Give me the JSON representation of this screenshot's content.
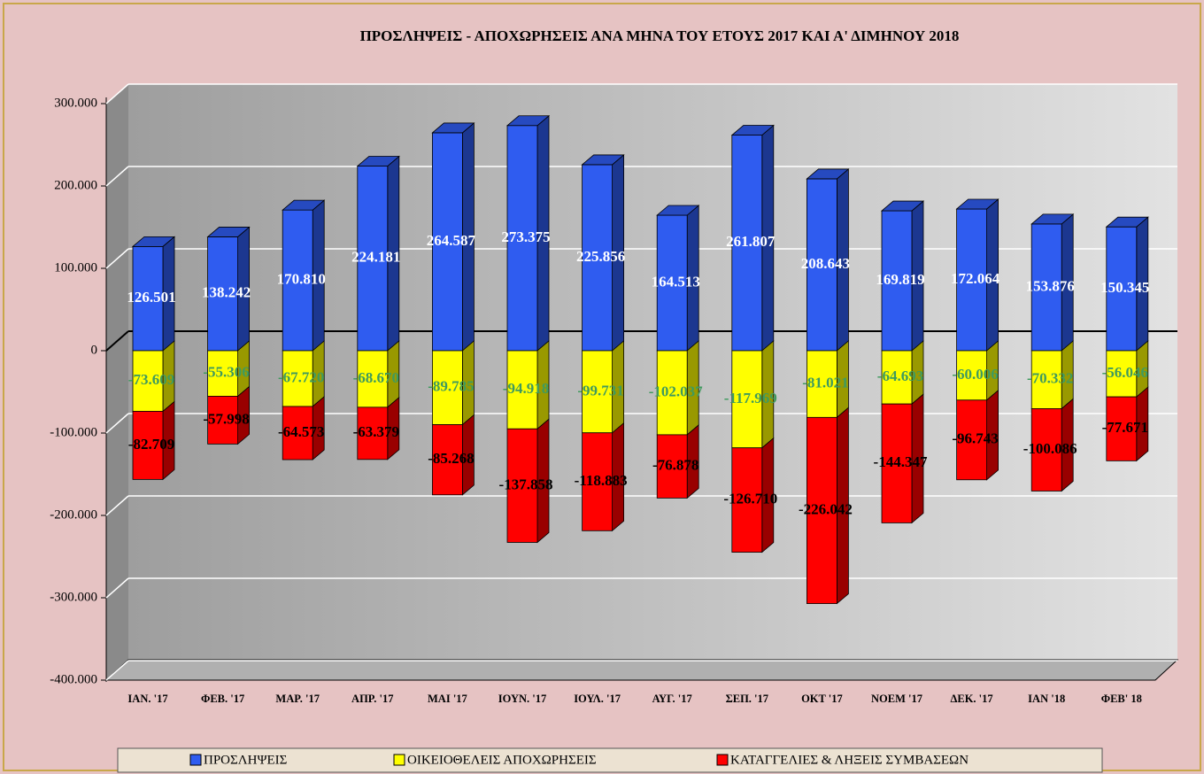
{
  "chart_data": {
    "type": "bar3d_stacked",
    "title": "ΠΡΟΣΛΗΨΕΙΣ - ΑΠΟΧΩΡΗΣΕΙΣ ΑΝΑ ΜΗΝΑ ΤΟΥ  ΕΤΟΥΣ 2017  ΚΑΙ Α' ΔΙΜΗΝΟΥ 2018",
    "categories": [
      "ΙΑΝ. '17",
      "ΦΕΒ. '17",
      "ΜΑΡ. '17",
      "ΑΠΡ. '17",
      "ΜΑΙ  '17",
      "ΙΟΥΝ. '17",
      "ΙΟΥΛ. '17",
      "ΑΥΓ. '17",
      "ΣΕΠ. '17",
      "ΟΚΤ '17",
      "ΝΟΕΜ '17",
      "ΔΕΚ. '17",
      "ΙΑΝ  '18",
      "ΦΕΒ' 18"
    ],
    "series": [
      {
        "name": "ΠΡΟΣΛΗΨΕΙΣ",
        "color": "#2f5cf0",
        "label_color": "#ffffff",
        "values": [
          126501,
          138242,
          170810,
          224181,
          264587,
          273375,
          225856,
          164513,
          261807,
          208643,
          169819,
          172064,
          153876,
          150345
        ],
        "value_labels": [
          "126.501",
          "138.242",
          "170.810",
          "224.181",
          "264.587",
          "273.375",
          "225.856",
          "164.513",
          "261.807",
          "208.643",
          "169.819",
          "172.064",
          "153.876",
          "150.345"
        ]
      },
      {
        "name": "ΟΙΚΕΙΟΘΕΛΕΙΣ ΑΠΟΧΩΡΗΣΕΙΣ",
        "color": "#ffff00",
        "label_color": "#3f9a5e",
        "values": [
          -73609,
          -55306,
          -67720,
          -68670,
          -89785,
          -94918,
          -99731,
          -102037,
          -117969,
          -81021,
          -64693,
          -60006,
          -70332,
          -56046
        ],
        "value_labels": [
          "-73.609",
          "-55.306",
          "-67.720",
          "-68.670",
          "-89.785",
          "-94.918",
          "-99.731",
          "-102.037",
          "-117.969",
          "-81.021",
          "-64.693",
          "-60.006",
          "-70.332",
          "-56.046"
        ]
      },
      {
        "name": "ΚΑΤΑΓΓΕΛΙΕΣ & ΛΗΞΕΙΣ ΣΥΜΒΑΣΕΩΝ",
        "color": "#ff0000",
        "label_color": "#000000",
        "values": [
          -82709,
          -57998,
          -64573,
          -63379,
          -85268,
          -137858,
          -118883,
          -76878,
          -126710,
          -226042,
          -144347,
          -96743,
          -100086,
          -77671
        ],
        "value_labels": [
          "-82.709",
          "-57.998",
          "-64.573",
          "-63.379",
          "-85.268",
          "-137.858",
          "-118.883",
          "-76.878",
          "-126.710",
          "-226.042",
          "-144.347",
          "-96.743",
          "-100.086",
          "-77.671"
        ]
      }
    ],
    "ylim": [
      -400000,
      300000
    ],
    "yticks": [
      {
        "value": 300000,
        "label": "300.000"
      },
      {
        "value": 200000,
        "label": "200.000"
      },
      {
        "value": 100000,
        "label": "100.000"
      },
      0,
      {
        "value": -100000,
        "label": "-100.000"
      },
      {
        "value": -200000,
        "label": "-200.000"
      },
      {
        "value": -300000,
        "label": "-300.000"
      },
      {
        "value": -400000,
        "label": "-400.000"
      }
    ],
    "grid": true,
    "legend": "bottom"
  }
}
